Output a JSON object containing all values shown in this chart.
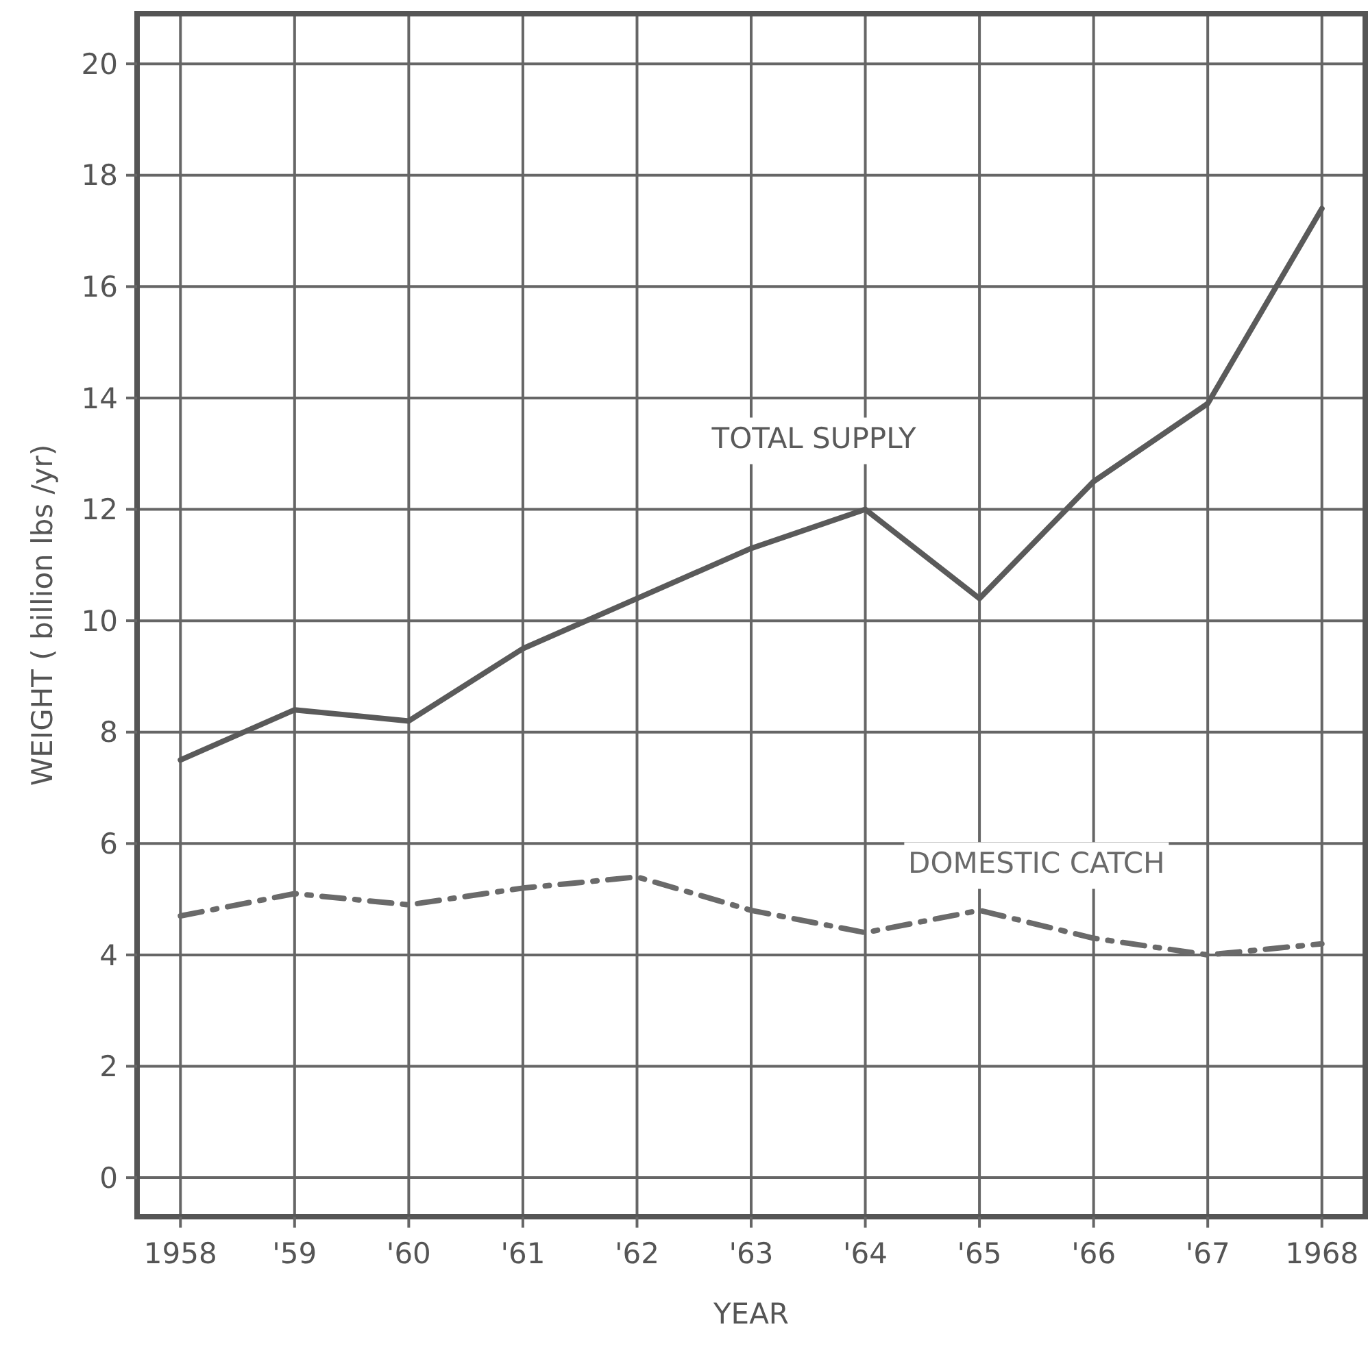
{
  "chart_data": {
    "type": "line",
    "xlabel": "YEAR",
    "ylabel": "WEIGHT ( billion lbs /yr)",
    "categories": [
      "1958",
      "'59",
      "'60",
      "'61",
      "'62",
      "'63",
      "'64",
      "'65",
      "'66",
      "'67",
      "1968"
    ],
    "series": [
      {
        "name": "TOTAL SUPPLY",
        "color": "#5a5a5a",
        "line_style": "solid",
        "values": [
          7.5,
          8.4,
          8.2,
          9.5,
          10.4,
          11.3,
          12.0,
          10.4,
          12.5,
          13.9,
          17.4
        ]
      },
      {
        "name": "DOMESTIC CATCH",
        "color": "#6a6a6a",
        "line_style": "dashed",
        "values": [
          4.7,
          5.1,
          4.9,
          5.2,
          5.4,
          4.8,
          4.4,
          4.8,
          4.3,
          4.0,
          4.2
        ]
      }
    ],
    "ylim": [
      -0.7,
      20.9
    ],
    "yticks": [
      0,
      2,
      4,
      6,
      8,
      10,
      12,
      14,
      16,
      18,
      20
    ],
    "grid": true
  }
}
